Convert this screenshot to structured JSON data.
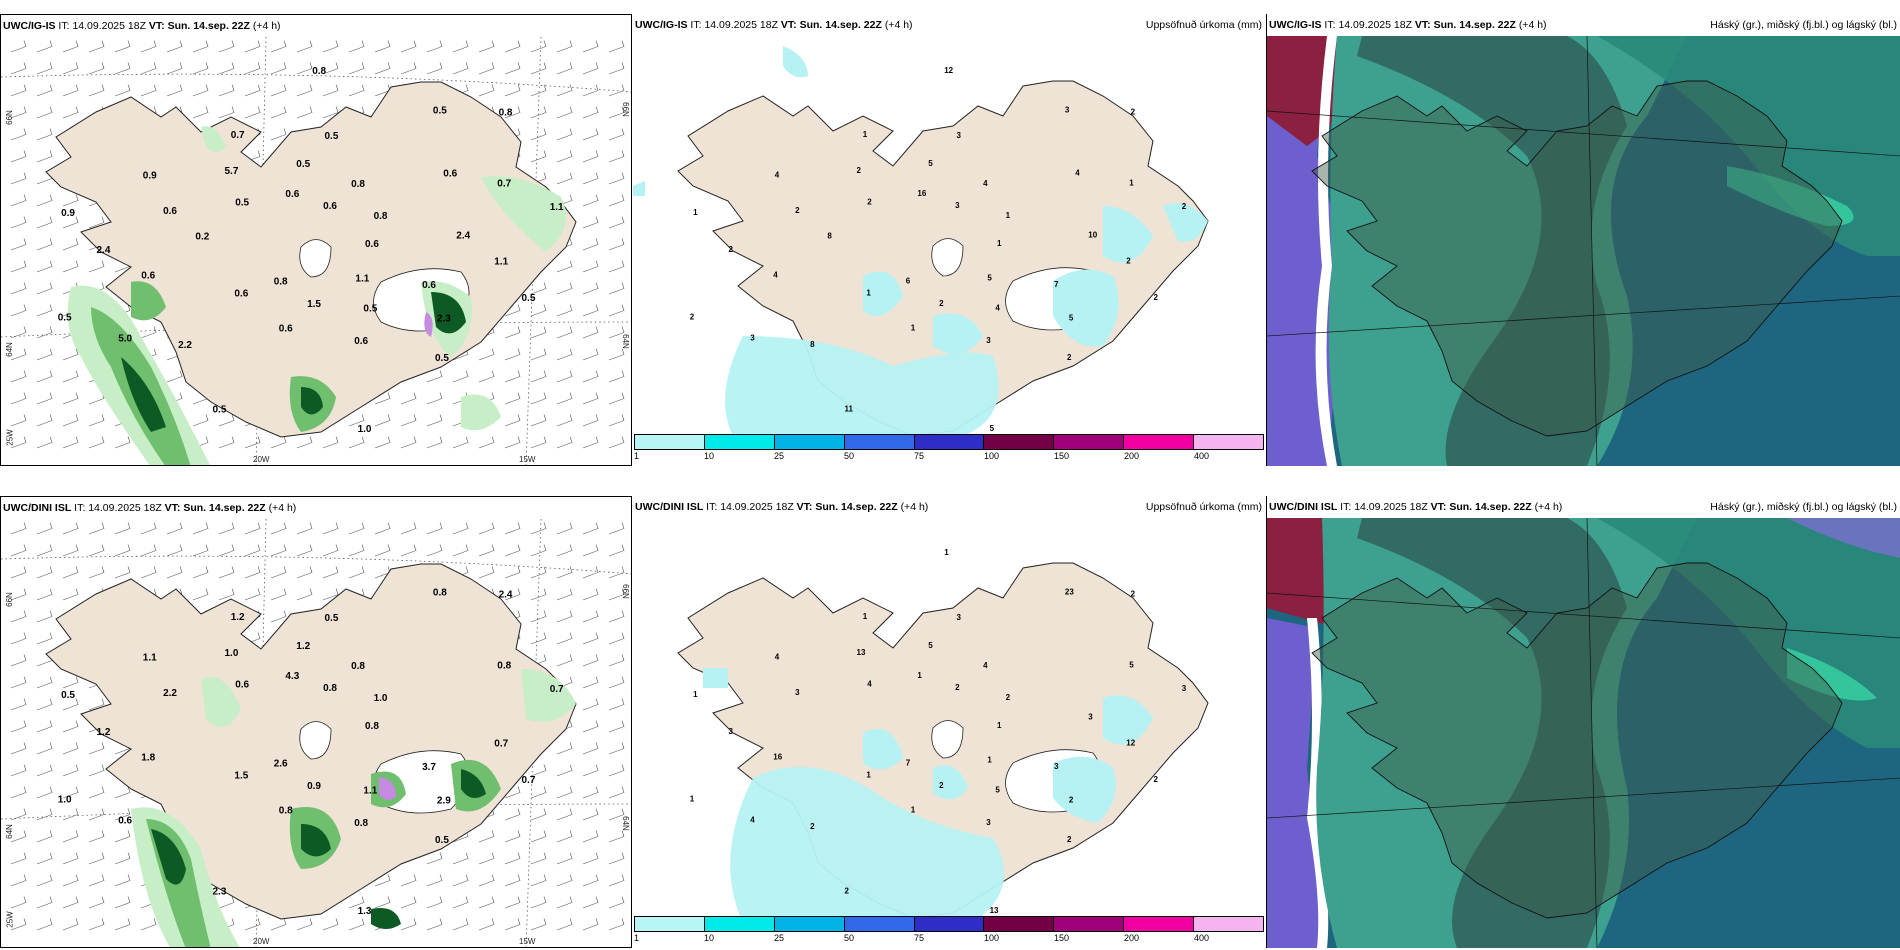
{
  "rows": [
    {
      "model": "UWC/IG-IS",
      "it_label": "IT:",
      "it_value": "14.09.2025 18Z",
      "vt_label": "VT:",
      "vt_value": "Sun. 14.sep. 22Z",
      "lead": "(+4 h)",
      "precip_title": "Uppsöfnuð úrkoma (mm)",
      "cloud_title": "Háský (gr.), miðský (fj.bl.) og lágský (bl.)",
      "lat_labels": [
        "66N",
        "64N",
        "25W"
      ],
      "lon_labels": [
        "20W",
        "15W"
      ],
      "lat_labels_right": [
        "66N",
        "64N"
      ],
      "panel1_values": [
        "0.6",
        "0.6",
        "0.5",
        "0.5",
        "0.9",
        "0.8",
        "0.6",
        "0.7",
        "0.5",
        "0.5",
        "0.8",
        "0.6",
        "0.9",
        "1.1",
        "0.8",
        "0.5",
        "2.3",
        "2.4",
        "0.8",
        "1.5",
        "5.7",
        "1.1",
        "5.0",
        "0.6",
        "0.5",
        "0.6",
        "0.7",
        "0.5",
        "0.6",
        "0.6",
        "0.6",
        "0.5",
        "1.0",
        "0.5",
        "2.4",
        "2.2",
        "0.8",
        "1.1",
        "0.2",
        "0.6"
      ],
      "panel2_values": [
        "1",
        "1",
        "3",
        "2",
        "1",
        "1",
        "1",
        "1",
        "2",
        "2",
        "4",
        "3",
        "4",
        "2",
        "6",
        "5",
        "5",
        "2",
        "2",
        "2",
        "2",
        "2",
        "3",
        "3",
        "4",
        "2",
        "1",
        "11",
        "16",
        "7",
        "4",
        "3",
        "5",
        "2",
        "10",
        "8",
        "12",
        "5",
        "8",
        "4"
      ]
    },
    {
      "model": "UWC/DINI ISL",
      "it_label": "IT:",
      "it_value": "14.09.2025 18Z",
      "vt_label": "VT:",
      "vt_value": "Sun. 14.sep. 22Z",
      "lead": "(+4 h)",
      "precip_title": "Uppsöfnuð úrkoma (mm)",
      "cloud_title": "Háský (gr.), miðský (fj.bl.) og lágský (bl.)",
      "lat_labels": [
        "66N",
        "64N",
        "25W"
      ],
      "lon_labels": [
        "20W",
        "15W"
      ],
      "lat_labels_right": [
        "66N",
        "64N"
      ],
      "panel1_values": [
        "0.8",
        "1.5",
        "0.5",
        "0.5",
        "0.5",
        "1.0",
        "0.8",
        "1.2",
        "0.7",
        "1.0",
        "0.8",
        "0.8",
        "1.1",
        "0.7",
        "2.6",
        "1.2",
        "2.9",
        "1.2",
        "2.4",
        "0.9",
        "1.0",
        "0.7",
        "0.6",
        "0.8",
        "1.1",
        "2.2",
        "0.8",
        "2.3",
        "4.3",
        "3.7",
        "1.8",
        "0.8",
        "1.3",
        "0.6"
      ],
      "panel2_values": [
        "1",
        "1",
        "3",
        "2",
        "1",
        "2",
        "1",
        "1",
        "2",
        "1",
        "4",
        "3",
        "4",
        "3",
        "7",
        "5",
        "2",
        "3",
        "2",
        "2",
        "13",
        "12",
        "4",
        "2",
        "5",
        "3",
        "5",
        "2",
        "1",
        "3",
        "16",
        "23",
        "13",
        "4",
        "3",
        "2",
        "1",
        "1"
      ]
    }
  ],
  "colorbar": {
    "ticks": [
      "1",
      "10",
      "25",
      "50",
      "75",
      "100",
      "150",
      "200",
      "400"
    ],
    "colors": [
      "#b8f6f6",
      "#00eaea",
      "#00b4ea",
      "#3268ea",
      "#2d2dc8",
      "#730044",
      "#a0007a",
      "#f000a0",
      "#f3b4f0"
    ]
  },
  "colors": {
    "land": "#efe3d5",
    "light_green": "#c8eec8",
    "mid_green": "#6fbf6f",
    "dark_green": "#0d5a24",
    "precip_cyan": "#b6f2f3",
    "cloud_teal": "#3ea08e",
    "cloud_dark": "#2e5e5a",
    "cloud_blue": "#1e6680",
    "cloud_violet": "#6d5fcd",
    "cloud_red": "#8c2040"
  }
}
